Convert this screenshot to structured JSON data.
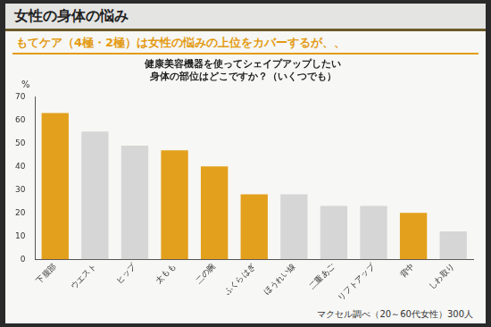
{
  "slide": {
    "title": "女性の身体の悩み",
    "subtitle": "もてケア（4極・2極）は女性の悩みの上位をカバーするが、、"
  },
  "chart_data": {
    "type": "bar",
    "title": [
      "健康美容機器を使ってシェイプアップしたい",
      "身体の部位はどこですか？（いくつでも）"
    ],
    "y_label": "%",
    "source": "マクセル調べ（20～60代女性）300人",
    "categories": [
      "下腹部",
      "ウエスト",
      "ヒップ",
      "太もも",
      "二の腕",
      "ふくらはぎ",
      "ほうれい線",
      "二重あご",
      "リフトアップ",
      "背中",
      "しわ取り"
    ],
    "values": [
      63,
      55,
      49,
      47,
      40,
      28,
      28,
      23,
      23,
      20,
      12
    ],
    "colors": [
      "#e3a01c",
      "#d6d6d6",
      "#d6d6d6",
      "#e3a01c",
      "#e3a01c",
      "#e3a01c",
      "#d6d6d6",
      "#d6d6d6",
      "#d6d6d6",
      "#e3a01c",
      "#d6d6d6"
    ],
    "ylim": [
      0,
      70
    ],
    "yticks": [
      0,
      10,
      20,
      30,
      40,
      50,
      60,
      70
    ],
    "grid": false
  }
}
